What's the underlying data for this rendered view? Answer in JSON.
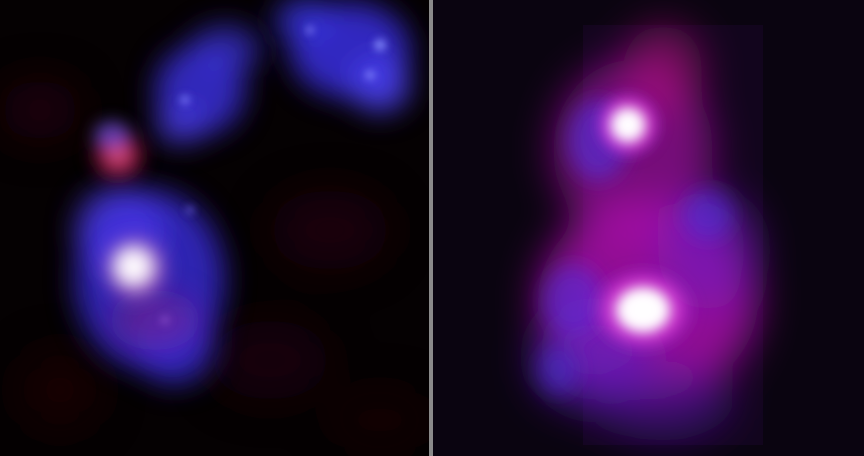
{
  "image": {
    "description_free_panels": [
      "left-panel",
      "right-panel"
    ],
    "colors": {
      "background": "#000000",
      "blue_emission": "#4a3cf0",
      "red_emission": "#d01a60",
      "magenta_emission": "#e020d0",
      "core_white": "#ffffff",
      "divider": "#8a8a8a"
    }
  }
}
